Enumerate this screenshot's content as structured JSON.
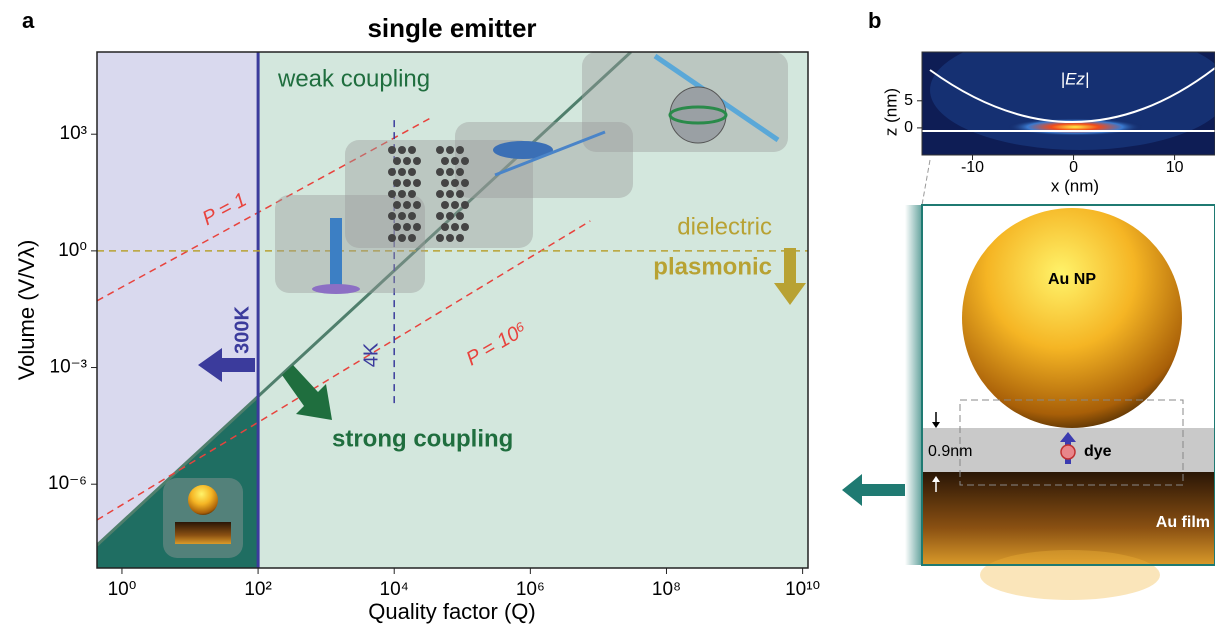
{
  "chart_data": [
    {
      "type": "line",
      "panel_label": "a",
      "title": "single emitter",
      "xlabel": "Quality factor (Q)",
      "ylabel": "Volume (V/Vλ)",
      "xscale": "log",
      "yscale": "log",
      "grid": false,
      "xlim": [
        0.43,
        12000000000.0
      ],
      "ylim": [
        7e-09,
        130000.0
      ],
      "xticks": [
        {
          "value": 1,
          "label": "10⁰"
        },
        {
          "value": 100,
          "label": "10²"
        },
        {
          "value": 10000,
          "label": "10⁴"
        },
        {
          "value": 1000000,
          "label": "10⁶"
        },
        {
          "value": 100000000,
          "label": "10⁸"
        },
        {
          "value": 10000000000,
          "label": "10¹⁰"
        }
      ],
      "yticks": [
        {
          "value": 1e-06,
          "label": "10⁻⁶"
        },
        {
          "value": 0.001,
          "label": "10⁻³"
        },
        {
          "value": 1,
          "label": "10⁰"
        },
        {
          "value": 1000,
          "label": "10³"
        }
      ],
      "annotations": [
        "weak coupling",
        "strong coupling"
      ],
      "series": [
        {
          "x": [
            0.43,
            30000000
          ],
          "values": [
            2.7e-08,
            130000
          ],
          "color": "#4f7f6c",
          "style": "solid"
        },
        {
          "x": [
            0.43,
            34000
          ],
          "values": [
            0.052,
            2600
          ],
          "color": "#e8433d",
          "style": "dashed",
          "labels": [
            "P = 1"
          ]
        },
        {
          "x": [
            0.43,
            7600000
          ],
          "values": [
            1.2e-07,
            5.9
          ],
          "color": "#e8433d",
          "style": "dashed",
          "labels": [
            "P = 10⁶"
          ]
        },
        {
          "x": [
            100,
            100
          ],
          "values": [
            7e-09,
            130000
          ],
          "color": "#3b3b9c",
          "style": "solid",
          "labels": [
            "300K"
          ]
        },
        {
          "x": [
            10000,
            10000
          ],
          "values": [
            2300,
            0.00011
          ],
          "color": "#3b3b9c",
          "style": "dashed",
          "labels": [
            "4K"
          ]
        },
        {
          "x": [
            0.43,
            12000000000.0
          ],
          "values": [
            1,
            1
          ],
          "color": "#b8a233",
          "style": "dashed",
          "labels": [
            "dielectric",
            "plasmonic"
          ]
        }
      ]
    },
    {
      "type": "heatmap",
      "panel_label": "b",
      "title": "|Ez|",
      "xlabel": "x (nm)",
      "ylabel": "z (nm)",
      "xlim": [
        -15,
        14
      ],
      "ylim": [
        -5,
        14
      ],
      "xticks": [
        -10,
        0,
        10
      ],
      "yticks": [
        0,
        5
      ]
    }
  ],
  "diagram": {
    "particle": "Au NP",
    "gap": "0.9nm",
    "emitter": "dye",
    "substrate": "Au film"
  }
}
